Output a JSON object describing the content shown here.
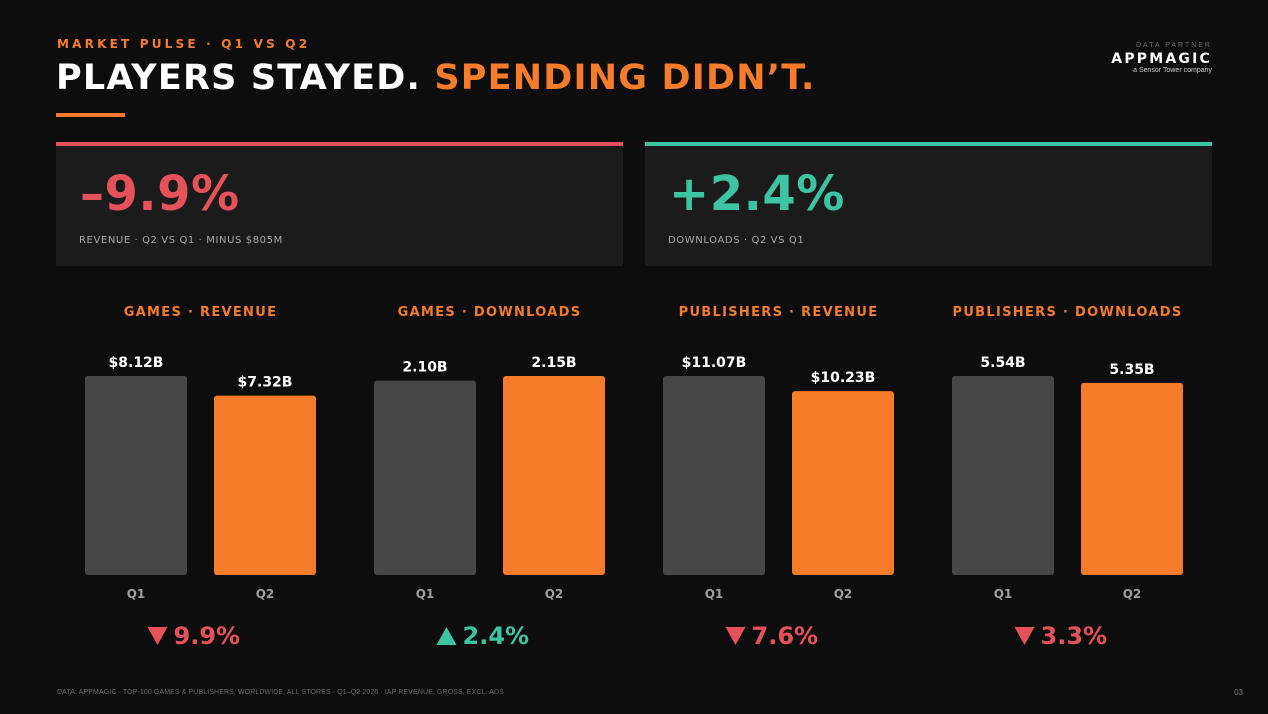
{
  "header": {
    "kicker": "MARKET PULSE · Q1 VS Q2",
    "title_main": "PLAYERS STAYED.",
    "title_accent": "SPENDING DIDN’T."
  },
  "partner": {
    "caption": "DATA PARTNER",
    "logo": "APPMAGIC",
    "sub": "a Sensor Tower company"
  },
  "kpis": [
    {
      "value": "–9.9%",
      "label": "REVENUE · Q2 VS Q1 · MINUS $805M"
    },
    {
      "value": "+2.4%",
      "label": "DOWNLOADS · Q2 VS Q1"
    }
  ],
  "colors": {
    "accent": "#f57c2a",
    "negative": "#e5525a",
    "positive": "#3dc4a2",
    "q1_bar": "#474747",
    "q2_bar": "#f57c2a"
  },
  "chart_data": [
    {
      "type": "bar",
      "title": "GAMES · REVENUE",
      "categories": [
        "Q1",
        "Q2"
      ],
      "values": [
        8.12,
        7.32
      ],
      "value_labels": [
        "$8.12B",
        "$7.32B"
      ],
      "change": {
        "direction": "down",
        "text": "9.9%"
      }
    },
    {
      "type": "bar",
      "title": "GAMES · DOWNLOADS",
      "categories": [
        "Q1",
        "Q2"
      ],
      "values": [
        2.1,
        2.15
      ],
      "value_labels": [
        "2.10B",
        "2.15B"
      ],
      "change": {
        "direction": "up",
        "text": "2.4%"
      }
    },
    {
      "type": "bar",
      "title": "PUBLISHERS · REVENUE",
      "categories": [
        "Q1",
        "Q2"
      ],
      "values": [
        11.07,
        10.23
      ],
      "value_labels": [
        "$11.07B",
        "$10.23B"
      ],
      "change": {
        "direction": "down",
        "text": "7.6%"
      }
    },
    {
      "type": "bar",
      "title": "PUBLISHERS · DOWNLOADS",
      "categories": [
        "Q1",
        "Q2"
      ],
      "values": [
        5.54,
        5.35
      ],
      "value_labels": [
        "5.54B",
        "5.35B"
      ],
      "change": {
        "direction": "down",
        "text": "3.3%"
      }
    }
  ],
  "footer": {
    "note": "DATA: APPMAGIC · TOP-100 GAMES & PUBLISHERS, WORLDWIDE, ALL STORES · Q1–Q2 2026 · IAP REVENUE, GROSS, EXCL. ADS",
    "page": "03"
  }
}
